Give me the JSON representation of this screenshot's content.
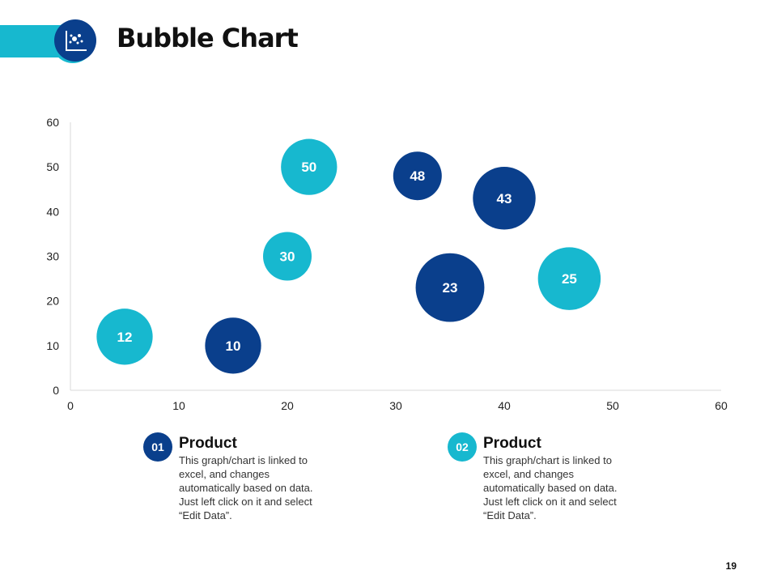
{
  "header": {
    "title": "Bubble Chart",
    "icon": "bubble-chart-icon"
  },
  "chart_data": {
    "type": "bubble",
    "xlim": [
      0,
      60
    ],
    "ylim": [
      0,
      60
    ],
    "xticks": [
      0,
      10,
      20,
      30,
      40,
      50,
      60
    ],
    "yticks": [
      0,
      10,
      20,
      30,
      40,
      50,
      60
    ],
    "grid": false,
    "series": [
      {
        "color": "#0a3f8c",
        "points": [
          {
            "x": 15,
            "y": 10,
            "size": 12,
            "label": "10"
          },
          {
            "x": 32,
            "y": 48,
            "size": 9,
            "label": "48"
          },
          {
            "x": 35,
            "y": 23,
            "size": 18,
            "label": "23"
          },
          {
            "x": 40,
            "y": 43,
            "size": 15,
            "label": "43"
          }
        ]
      },
      {
        "color": "#17b8cf",
        "points": [
          {
            "x": 5,
            "y": 12,
            "size": 12,
            "label": "12"
          },
          {
            "x": 20,
            "y": 30,
            "size": 9,
            "label": "30"
          },
          {
            "x": 22,
            "y": 50,
            "size": 12,
            "label": "50"
          },
          {
            "x": 46,
            "y": 25,
            "size": 15,
            "label": "25"
          }
        ]
      }
    ]
  },
  "legend": [
    {
      "number": "01",
      "title": "Product",
      "text": "This graph/chart is linked to excel, and changes automatically based on data. Just left click on it and select “Edit Data”.",
      "color": "#0a3f8c"
    },
    {
      "number": "02",
      "title": "Product",
      "text": "This graph/chart is linked to excel, and changes automatically based on data. Just left click on it and select “Edit Data”.",
      "color": "#17b8cf"
    }
  ],
  "page_number": "19"
}
